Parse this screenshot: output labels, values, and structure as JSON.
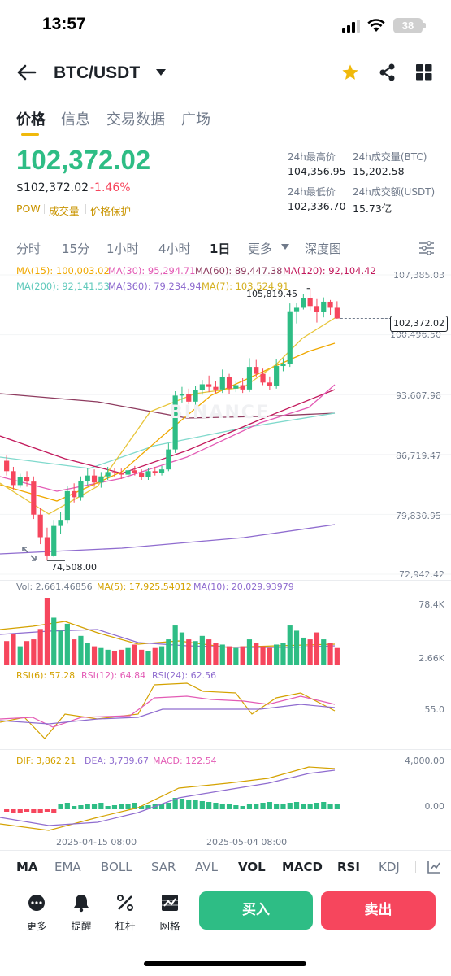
{
  "status": {
    "time": "13:57",
    "battery": "38"
  },
  "header": {
    "pair": "BTC/USDT"
  },
  "tabs": [
    "价格",
    "信息",
    "交易数据",
    "广场"
  ],
  "price": {
    "last": "102,372.02",
    "usd": "$102,372.02",
    "change": "-1.46%",
    "tags": [
      "POW",
      "成交量",
      "价格保护"
    ]
  },
  "stats": {
    "high_label": "24h最高价",
    "high": "104,356.95",
    "low_label": "24h最低价",
    "low": "102,336.70",
    "vol_btc_label": "24h成交量(BTC)",
    "vol_btc": "15,202.58",
    "vol_usdt_label": "24h成交额(USDT)",
    "vol_usdt": "15.73亿"
  },
  "intervals": [
    "分时",
    "15分",
    "1小时",
    "4小时",
    "1日",
    "更多",
    "深度图"
  ],
  "ma_legend": {
    "ma15": "MA(15): 100,003.02",
    "ma30": "MA(30): 95,294.71",
    "ma60": "MA(60): 89,447.38",
    "ma120": "MA(120): 92,104.42",
    "ma200": "MA(200): 92,141.53",
    "ma360": "MA(360): 79,234.94",
    "ma7": "MA(7): 103,524.91"
  },
  "colors": {
    "up": "#2ebd85",
    "down": "#f6465d",
    "accent": "#f0b90b",
    "ma7": "#e8c53a",
    "ma15": "#f0a800",
    "ma30": "#e35bb5",
    "ma60": "#8e3b5f",
    "ma120": "#c2185b",
    "ma200": "#7fd9cc",
    "ma360": "#8f6ccf"
  },
  "price_axis": [
    "107,385.03",
    "100,496.50",
    "93,607.98",
    "86,719.47",
    "79,830.95",
    "72,942.42"
  ],
  "price_marker": "102,372.02",
  "high_marker": "105,819.45",
  "low_marker": "74,508.00",
  "watermark": "BINANCE",
  "volume": {
    "vol": "Vol: 2,661.46856",
    "ma5": "MA(5): 17,925.54012",
    "ma10": "MA(10): 20,029.93979",
    "axis_top": "78.4K",
    "axis_bottom": "2.66K"
  },
  "rsi": {
    "rsi6": "RSI(6): 57.28",
    "rsi12": "RSI(12): 64.84",
    "rsi24": "RSI(24): 62.56",
    "axis": "55.0"
  },
  "macd": {
    "dif": "DIF: 3,862.21",
    "dea": "DEA: 3,739.67",
    "macd": "MACD: 122.54",
    "axis_top": "4,000.00",
    "axis_zero": "0.00"
  },
  "dates": [
    "2025-04-15 08:00",
    "2025-05-04 08:00"
  ],
  "indicator_tabs": [
    "MA",
    "EMA",
    "BOLL",
    "SAR",
    "AVL",
    "VOL",
    "MACD",
    "RSI",
    "KDJ"
  ],
  "bottom": {
    "more": "更多",
    "alert": "提醒",
    "margin": "杠杆",
    "grid": "网格",
    "buy": "买入",
    "sell": "卖出"
  },
  "chart_data": {
    "type": "candlestick",
    "candles": [
      [
        86000,
        84800,
        86600,
        84300
      ],
      [
        84800,
        83200,
        85300,
        82700
      ],
      [
        83200,
        84100,
        84500,
        82900
      ],
      [
        84100,
        83600,
        84800,
        83000
      ],
      [
        83600,
        79800,
        84200,
        79300
      ],
      [
        79800,
        77200,
        80600,
        76400
      ],
      [
        77200,
        75100,
        78300,
        74508
      ],
      [
        75100,
        78500,
        79200,
        74900
      ],
      [
        78500,
        79200,
        80100,
        77600
      ],
      [
        79200,
        82500,
        83100,
        78800
      ],
      [
        82500,
        81800,
        83400,
        81200
      ],
      [
        81800,
        83700,
        84200,
        81400
      ],
      [
        83700,
        84300,
        85200,
        83200
      ],
      [
        84300,
        83500,
        85000,
        83000
      ],
      [
        83500,
        84200,
        84700,
        82900
      ],
      [
        84200,
        84700,
        85300,
        83800
      ],
      [
        84700,
        84600,
        85200,
        84100
      ],
      [
        84600,
        84400,
        85100,
        83900
      ],
      [
        84400,
        84900,
        85300,
        84000
      ],
      [
        84900,
        84600,
        85400,
        84300
      ],
      [
        84600,
        84100,
        85000,
        83800
      ],
      [
        84100,
        84800,
        85200,
        83800
      ],
      [
        84800,
        84600,
        85300,
        84300
      ],
      [
        84600,
        85000,
        85400,
        84300
      ],
      [
        85000,
        87300,
        88000,
        84800
      ],
      [
        87300,
        93500,
        94000,
        86900
      ],
      [
        93500,
        93700,
        94500,
        92700
      ],
      [
        93700,
        92800,
        94300,
        92500
      ],
      [
        92800,
        94100,
        94600,
        92300
      ],
      [
        94100,
        94800,
        95300,
        93600
      ],
      [
        94800,
        94500,
        95800,
        93900
      ],
      [
        94500,
        94200,
        95200,
        93800
      ],
      [
        94200,
        95600,
        96500,
        93800
      ],
      [
        95600,
        94300,
        96000,
        93700
      ],
      [
        94300,
        94700,
        95200,
        93900
      ],
      [
        94700,
        94200,
        95500,
        93800
      ],
      [
        94200,
        96800,
        97800,
        93900
      ],
      [
        96800,
        96000,
        97600,
        95600
      ],
      [
        96000,
        95000,
        96600,
        94700
      ],
      [
        95000,
        94600,
        95700,
        94100
      ],
      [
        94600,
        96900,
        97700,
        94300
      ],
      [
        96900,
        97100,
        97800,
        96300
      ],
      [
        97100,
        103200,
        104100,
        96800
      ],
      [
        103200,
        103600,
        104200,
        101800
      ],
      [
        103600,
        104700,
        105200,
        103400
      ],
      [
        104700,
        103800,
        105819,
        103300
      ],
      [
        103800,
        103100,
        104600,
        101900
      ],
      [
        103100,
        104300,
        104800,
        102500
      ],
      [
        104300,
        103600,
        104500,
        102800
      ],
      [
        103600,
        102372,
        104356,
        102336
      ]
    ],
    "price_range": [
      72942.42,
      107385.03
    ],
    "current_price": 102372.02,
    "volume": [
      28,
      36,
      22,
      28,
      30,
      42,
      78,
      55,
      40,
      48,
      30,
      34,
      26,
      22,
      20,
      18,
      16,
      18,
      20,
      24,
      18,
      16,
      20,
      22,
      30,
      46,
      38,
      30,
      28,
      34,
      30,
      26,
      24,
      22,
      20,
      22,
      30,
      26,
      22,
      20,
      24,
      26,
      46,
      40,
      32,
      30,
      38,
      30,
      26,
      20
    ],
    "volume_range": [
      2660,
      78400
    ]
  }
}
